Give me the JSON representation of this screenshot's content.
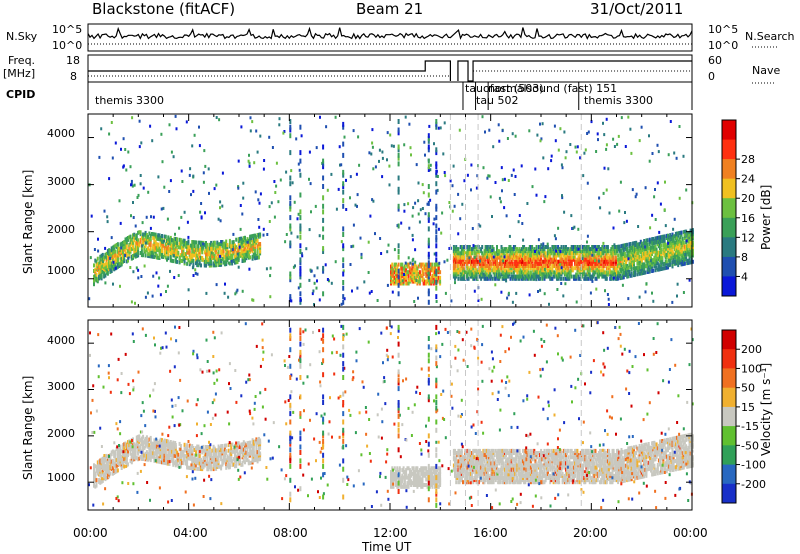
{
  "header": {
    "station": "Blackstone (fitACF)",
    "beam": "Beam 21",
    "date": "31/Oct/2011"
  },
  "top_strips": {
    "nsky_label": "N.Sky",
    "nsky_ticks": [
      "10^5",
      "10^0"
    ],
    "nsearch_label": "N.Search",
    "nsearch_ticks": [
      "10^5",
      "10^0"
    ],
    "freq_label": "Freq.",
    "freq_unit": "[MHz]",
    "freq_ticks": [
      "18",
      "8"
    ],
    "nave_label": "Nave",
    "nave_ticks": [
      "60",
      "0"
    ],
    "cpid_label": "CPID",
    "cpid_segments": [
      {
        "label": "themis 3300",
        "start_hour": 0,
        "end_hour": 14.9
      },
      {
        "label": "tauofast (503)",
        "start_hour": 14.9,
        "end_hour": 15.4
      },
      {
        "label": "normalsound (fast) 151",
        "start_hour": 15.4,
        "end_hour": 15.9
      },
      {
        "label": "tau 502",
        "start_hour": 15.9,
        "end_hour": 19.5
      },
      {
        "label": "themis 3300",
        "start_hour": 19.5,
        "end_hour": 24
      }
    ]
  },
  "chart_data": [
    {
      "type": "heatmap",
      "parameter": "Power",
      "ylabel": "Slant Range [km]",
      "yticks": [
        1000,
        2000,
        3000,
        4000
      ],
      "ylim": [
        400,
        4500
      ],
      "xlim": [
        0,
        24
      ],
      "colorbar_label": "Power [dB]",
      "colorbar_ticks": [
        "4",
        "8",
        "12",
        "16",
        "20",
        "24",
        "28"
      ],
      "colorbar_colors": [
        "#0a18d8",
        "#1f4fb0",
        "#2a7a80",
        "#3aa058",
        "#6cc040",
        "#f0c020",
        "#f08020",
        "#ff3010",
        "#e00000"
      ],
      "features": [
        {
          "hour_start": 0.2,
          "hour_end": 6.8,
          "range_center_km": 1600,
          "level_db": 14
        },
        {
          "hour_start": 12.0,
          "hour_end": 14.0,
          "range_center_km": 1050,
          "level_db": 22
        },
        {
          "hour_start": 14.5,
          "hour_end": 24.0,
          "range_center_km": 1350,
          "level_db": 20
        }
      ]
    },
    {
      "type": "heatmap",
      "parameter": "Velocity",
      "ylabel": "Slant Range [km]",
      "yticks": [
        1000,
        2000,
        3000,
        4000
      ],
      "ylim": [
        400,
        4500
      ],
      "xlim": [
        0,
        24
      ],
      "colorbar_label": "Velocity [m s⁻¹]",
      "colorbar_ticks": [
        "200",
        "100",
        "50",
        "15",
        "-15",
        "-50",
        "-100",
        "-200"
      ],
      "colorbar_colors": [
        "#1830c8",
        "#2868c0",
        "#30a058",
        "#60c030",
        "#c8c8c0",
        "#f0b030",
        "#f07020",
        "#f03010",
        "#d00000"
      ],
      "features": [
        {
          "hour_start": 0.2,
          "hour_end": 6.8,
          "range_center_km": 1500,
          "level_ms": 0
        },
        {
          "hour_start": 14.5,
          "hour_end": 24.0,
          "range_center_km": 1350,
          "level_ms": 0
        }
      ]
    }
  ],
  "x_axis": {
    "ticks": [
      "00:00",
      "04:00",
      "08:00",
      "12:00",
      "16:00",
      "20:00",
      "00:00"
    ],
    "xlabel": "Time UT"
  }
}
